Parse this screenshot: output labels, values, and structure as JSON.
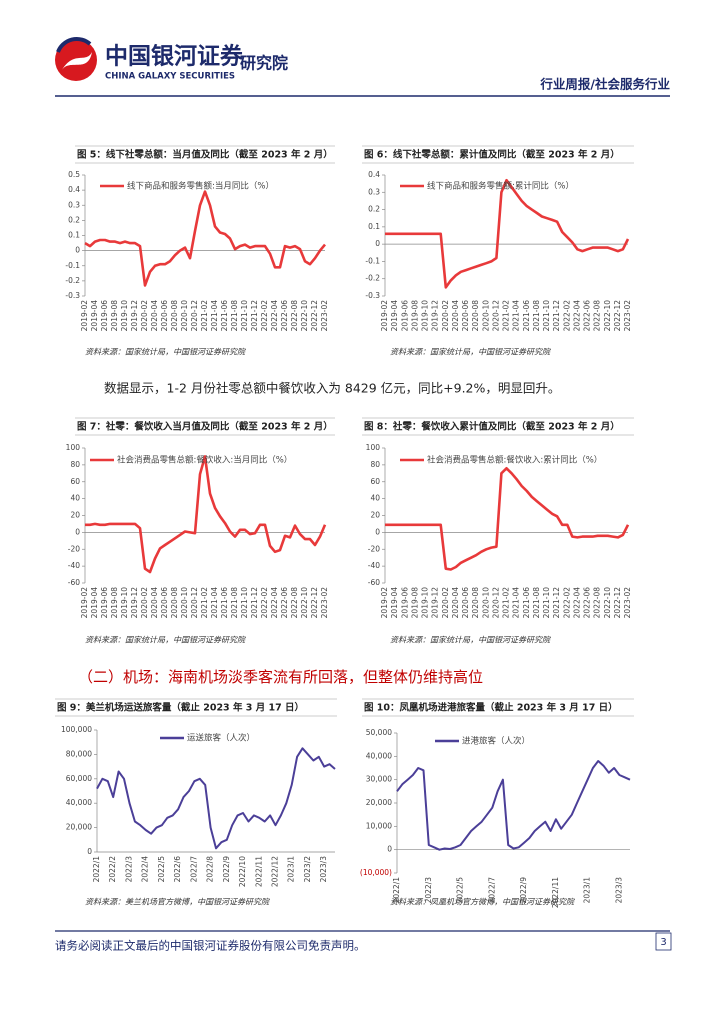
{
  "header": {
    "brand": "中国银河证券",
    "brand_en": "CHINA GALAXY SECURITIES",
    "institute": "研究院",
    "category": "行业周报/社会服务行业"
  },
  "body": {
    "paragraph": "数据显示，1-2 月份社零总额中餐饮收入为 8429 亿元，同比+9.2%，明显回升。",
    "section_heading": "（二）机场：海南机场淡季客流有所回落，但整体仍维持高位"
  },
  "footer": {
    "disclaimer": "请务必阅读正文最后的中国银河证券股份有限公司免责声明。",
    "page_number": 3
  },
  "chart_data": [
    {
      "type": "line",
      "title": "图 5：线下社零总额：当月值及同比（截至 2023 年 2 月）",
      "source": "资料来源：国家统计局，中国银河证券研究院",
      "categories": [
        "2019-02",
        null,
        "2019-04",
        null,
        "2019-06",
        null,
        "2019-08",
        null,
        "2019-10",
        null,
        "2019-12",
        null,
        "2020-02",
        null,
        "2020-04",
        null,
        "2020-06",
        null,
        "2020-08",
        null,
        "2020-10",
        null,
        "2020-12",
        null,
        "2021-02",
        null,
        "2021-04",
        null,
        "2021-06",
        null,
        "2021-08",
        null,
        "2021-10",
        null,
        "2021-12",
        null,
        "2022-02",
        null,
        "2022-04",
        null,
        "2022-06",
        null,
        "2022-08",
        null,
        "2022-10",
        null,
        "2022-12",
        null,
        "2023-02"
      ],
      "series": [
        {
          "name": "线下商品和服务零售额:当月同比（%）",
          "color": "#e8393a",
          "values": [
            0.05,
            0.03,
            0.06,
            0.07,
            0.07,
            0.06,
            0.06,
            0.05,
            0.06,
            0.05,
            0.05,
            0.03,
            -0.23,
            -0.14,
            -0.1,
            -0.09,
            -0.09,
            -0.07,
            -0.03,
            0,
            0.02,
            -0.05,
            0.13,
            0.3,
            0.39,
            0.3,
            0.16,
            0.12,
            0.11,
            0.08,
            0.01,
            0.03,
            0.04,
            0.02,
            0.03,
            0.03,
            0.03,
            -0.02,
            -0.11,
            -0.11,
            0.03,
            0.02,
            0.03,
            0.01,
            -0.07,
            -0.09,
            -0.05,
            0,
            0.04
          ]
        }
      ],
      "ylim": [
        -0.3,
        0.5
      ],
      "yticks": [
        -0.3,
        -0.2,
        -0.1,
        0,
        0.1,
        0.2,
        0.3,
        0.4,
        0.5
      ]
    },
    {
      "type": "line",
      "title": "图 6：线下社零总额：累计值及同比（截至 2023 年 2 月）",
      "source": "资料来源：国家统计局，中国银河证券研究院",
      "categories": [
        "2019-02",
        null,
        "2019-04",
        null,
        "2019-06",
        null,
        "2019-08",
        null,
        "2019-10",
        null,
        "2019-12",
        null,
        "2020-02",
        null,
        "2020-04",
        null,
        "2020-06",
        null,
        "2020-08",
        null,
        "2020-10",
        null,
        "2020-12",
        null,
        "2021-02",
        null,
        "2021-04",
        null,
        "2021-06",
        null,
        "2021-08",
        null,
        "2021-10",
        null,
        "2021-12",
        null,
        "2022-02",
        null,
        "2022-04",
        null,
        "2022-06",
        null,
        "2022-08",
        null,
        "2022-10",
        null,
        "2022-12",
        null,
        "2023-02"
      ],
      "series": [
        {
          "name": "线下商品和服务零售额:累计同比（%）",
          "color": "#e8393a",
          "values": [
            0.06,
            0.06,
            0.06,
            0.06,
            0.06,
            0.06,
            0.06,
            0.06,
            0.06,
            0.06,
            0.06,
            0.06,
            -0.25,
            -0.21,
            -0.18,
            -0.16,
            -0.15,
            -0.14,
            -0.13,
            -0.12,
            -0.11,
            -0.1,
            -0.08,
            0.3,
            0.37,
            0.33,
            0.29,
            0.25,
            0.22,
            0.2,
            0.18,
            0.16,
            0.15,
            0.14,
            0.13,
            0.07,
            0.04,
            0.01,
            -0.03,
            -0.04,
            -0.03,
            -0.02,
            -0.02,
            -0.02,
            -0.02,
            -0.03,
            -0.04,
            -0.03,
            0.03
          ]
        }
      ],
      "ylim": [
        -0.3,
        0.4
      ],
      "yticks": [
        -0.3,
        -0.2,
        -0.1,
        0,
        0.1,
        0.2,
        0.3,
        0.4
      ]
    },
    {
      "type": "line",
      "title": "图 7：社零：餐饮收入当月值及同比（截至 2023 年 2 月）",
      "source": "资料来源：国家统计局，中国银河证券研究院",
      "categories": [
        "2019-02",
        null,
        "2019-04",
        null,
        "2019-06",
        null,
        "2019-08",
        null,
        "2019-10",
        null,
        "2019-12",
        null,
        "2020-02",
        null,
        "2020-04",
        null,
        "2020-06",
        null,
        "2020-08",
        null,
        "2020-10",
        null,
        "2020-12",
        null,
        "2021-02",
        null,
        "2021-04",
        null,
        "2021-06",
        null,
        "2021-08",
        null,
        "2021-10",
        null,
        "2021-12",
        null,
        "2022-02",
        null,
        "2022-04",
        null,
        "2022-06",
        null,
        "2022-08",
        null,
        "2022-10",
        null,
        "2022-12",
        null,
        "2023-02"
      ],
      "series": [
        {
          "name": "社会消费品零售总额:餐饮收入:当月同比（%）",
          "color": "#e8393a",
          "values": [
            9,
            9,
            10,
            9,
            9,
            10,
            10,
            10,
            10,
            10,
            10,
            5,
            -43,
            -47,
            -31,
            -19,
            -15,
            -11,
            -7,
            -3,
            1,
            0,
            -1,
            69,
            90,
            46,
            29,
            19,
            11,
            1,
            -5,
            3,
            3,
            -2,
            -1,
            9,
            9,
            -16,
            -23,
            -21,
            -4,
            -6,
            8,
            -2,
            -8,
            -8,
            -15,
            -5,
            9
          ]
        }
      ],
      "ylim": [
        -60,
        100
      ],
      "yticks": [
        -60,
        -40,
        -20,
        0,
        20,
        40,
        60,
        80,
        100
      ]
    },
    {
      "type": "line",
      "title": "图 8：社零：餐饮收入累计值及同比（截至 2023 年 2 月）",
      "source": "资料来源：国家统计局，中国银河证券研究院",
      "categories": [
        "2019-02",
        null,
        "2019-04",
        null,
        "2019-06",
        null,
        "2019-08",
        null,
        "2019-10",
        null,
        "2019-12",
        null,
        "2020-02",
        null,
        "2020-04",
        null,
        "2020-06",
        null,
        "2020-08",
        null,
        "2020-10",
        null,
        "2020-12",
        null,
        "2021-02",
        null,
        "2021-04",
        null,
        "2021-06",
        null,
        "2021-08",
        null,
        "2021-10",
        null,
        "2021-12",
        null,
        "2022-02",
        null,
        "2022-04",
        null,
        "2022-06",
        null,
        "2022-08",
        null,
        "2022-10",
        null,
        "2022-12",
        null,
        "2023-02"
      ],
      "series": [
        {
          "name": "社会消费品零售总额:餐饮收入:累计同比（%）",
          "color": "#e8393a",
          "values": [
            9,
            9,
            9,
            9,
            9,
            9,
            9,
            9,
            9,
            9,
            9,
            9,
            -43,
            -44,
            -41,
            -36,
            -33,
            -30,
            -27,
            -23,
            -20,
            -18,
            -17,
            70,
            76,
            70,
            63,
            55,
            49,
            42,
            37,
            32,
            27,
            22,
            19,
            9,
            9,
            -5,
            -6,
            -5,
            -5,
            -5,
            -4,
            -4,
            -4,
            -5,
            -6,
            -3,
            9
          ]
        }
      ],
      "ylim": [
        -60,
        100
      ],
      "yticks": [
        -60,
        -40,
        -20,
        0,
        20,
        40,
        60,
        80,
        100
      ]
    },
    {
      "type": "line",
      "title": "图 9：美兰机场运送旅客量（截止 2023 年 3 月 17 日）",
      "source": "资料来源：美兰机场官方微博，中国银河证券研究院",
      "categories": [
        "2022/1",
        null,
        null,
        "2022/2",
        null,
        null,
        "2022/3",
        null,
        null,
        "2022/4",
        null,
        null,
        "2022/5",
        null,
        null,
        "2022/6",
        null,
        null,
        "2022/7",
        null,
        null,
        "2022/8",
        null,
        null,
        "2022/9",
        null,
        null,
        "2022/10",
        null,
        null,
        "2022/11",
        null,
        null,
        "2022/12",
        null,
        null,
        "2023/1",
        null,
        null,
        "2023/2",
        null,
        null,
        "2023/3",
        null,
        null
      ],
      "series": [
        {
          "name": "运送旅客（人次）",
          "color": "#4b3f98",
          "values": [
            52000,
            60000,
            58000,
            45000,
            66000,
            60000,
            40000,
            25000,
            22000,
            18000,
            15000,
            20000,
            22000,
            28000,
            30000,
            35000,
            45000,
            50000,
            58000,
            60000,
            55000,
            20000,
            3000,
            8000,
            10000,
            22000,
            30000,
            32000,
            25000,
            30000,
            28000,
            25000,
            30000,
            22000,
            30000,
            40000,
            55000,
            78000,
            85000,
            80000,
            75000,
            78000,
            70000,
            72000,
            68000
          ]
        }
      ],
      "ylim": [
        0,
        100000
      ],
      "yticks": [
        0,
        {
          "value": 20000,
          "label": "20,000"
        },
        {
          "value": 40000,
          "label": "40,000"
        },
        {
          "value": 60000,
          "label": "60,000"
        },
        {
          "value": 80000,
          "label": "80,000"
        },
        {
          "value": 100000,
          "label": "100,000"
        }
      ]
    },
    {
      "type": "line",
      "title": "图 10：凤凰机场进港旅客量（截止 2023 年 3 月 17 日）",
      "source": "资料来源：凤凰机场官方微博，中国银河证券研究院",
      "categories": [
        "2022/1",
        null,
        null,
        null,
        null,
        null,
        "2022/3",
        null,
        null,
        null,
        null,
        null,
        "2022/5",
        null,
        null,
        null,
        null,
        null,
        "2022/7",
        null,
        null,
        null,
        null,
        null,
        "2022/9",
        null,
        null,
        null,
        null,
        null,
        "2022/11",
        null,
        null,
        null,
        null,
        null,
        "2023/1",
        null,
        null,
        null,
        null,
        null,
        "2023/3",
        null,
        null
      ],
      "series": [
        {
          "name": "进港旅客（人次）",
          "color": "#4b3f98",
          "values": [
            25000,
            28000,
            30000,
            32000,
            35000,
            34000,
            2000,
            1000,
            0,
            500,
            300,
            1000,
            2000,
            5000,
            8000,
            10000,
            12000,
            15000,
            18000,
            25000,
            30000,
            2000,
            500,
            1000,
            3000,
            5000,
            8000,
            10000,
            12000,
            8000,
            13000,
            9000,
            12000,
            15000,
            20000,
            25000,
            30000,
            35000,
            38000,
            36000,
            33000,
            35000,
            32000,
            31000,
            30000
          ]
        }
      ],
      "ylim": [
        -10000,
        50000
      ],
      "yticks": [
        {
          "value": -10000,
          "label": "(10,000)"
        },
        0,
        {
          "value": 10000,
          "label": "10,000"
        },
        {
          "value": 20000,
          "label": "20,000"
        },
        {
          "value": 30000,
          "label": "30,000"
        },
        {
          "value": 40000,
          "label": "40,000"
        },
        {
          "value": 50000,
          "label": "50,000"
        }
      ]
    }
  ]
}
